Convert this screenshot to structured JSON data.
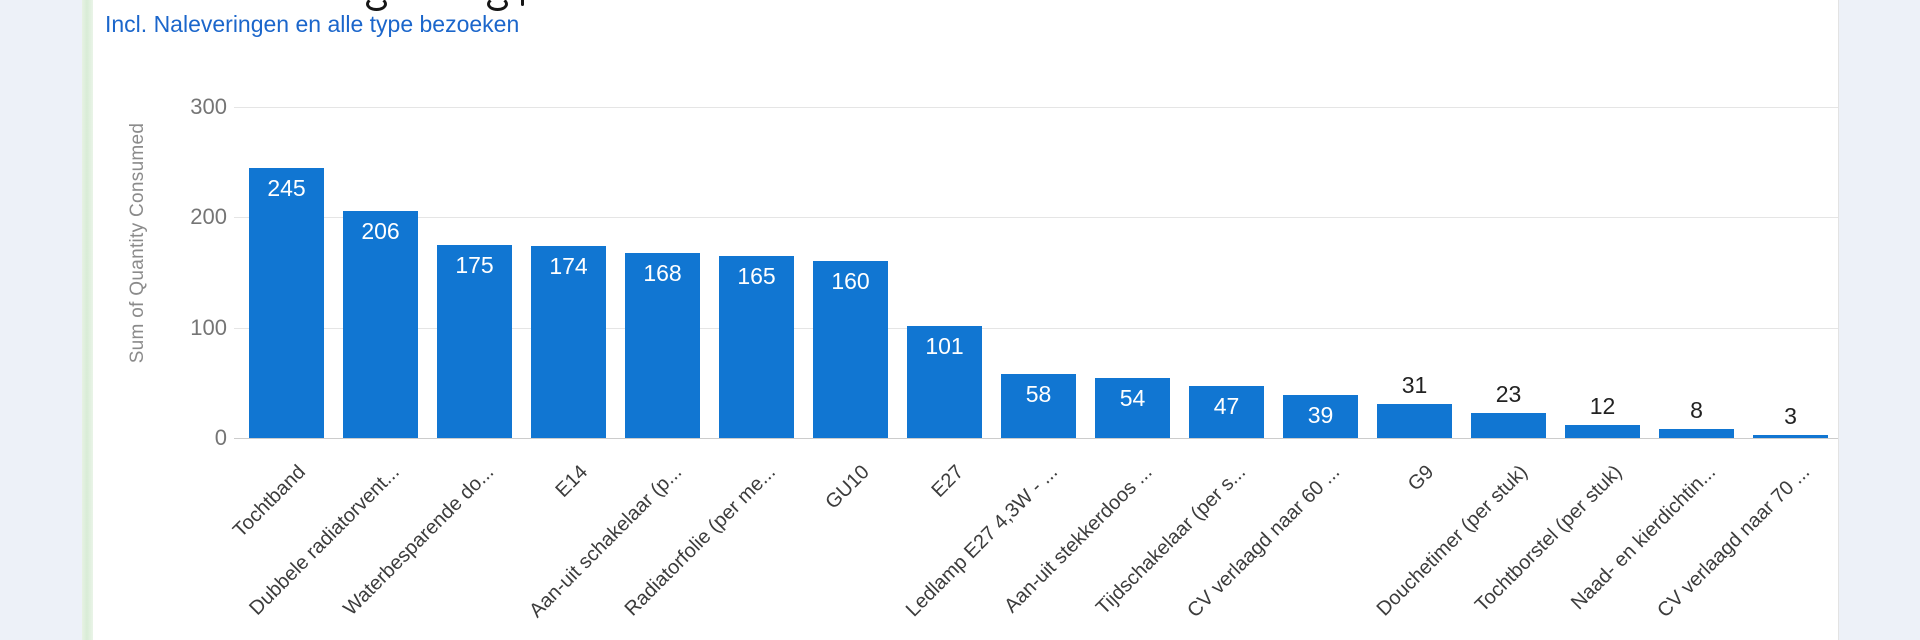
{
  "chart_data": {
    "type": "bar",
    "subtitle": "Incl. Naleveringen en alle type bezoeken",
    "ylabel": "Sum of Quantity Consumed",
    "ylim": [
      0,
      300
    ],
    "yticks": [
      0,
      100,
      200,
      300
    ],
    "grid": true,
    "legend": "none",
    "bar_color": "#1176d2",
    "subtitle_color": "#1b66cb",
    "categories": [
      "Tochtband",
      "Dubbele radiatorvent...",
      "Waterbesparende do...",
      "E14",
      "Aan-uit schakelaar (p...",
      "Radiatorfolie (per me...",
      "GU10",
      "E27",
      "Ledlamp E27 4,3W - ...",
      "Aan-uit stekkerdoos ...",
      "Tijdschakelaar (per s...",
      "CV verlaagd naar 60 ...",
      "G9",
      "Douchetimer (per stuk)",
      "Tochtborstel (per stuk)",
      "Naad- en kierdichtin...",
      "CV verlaagd naar 70 ..."
    ],
    "values": [
      245,
      206,
      175,
      174,
      168,
      165,
      160,
      101,
      58,
      54,
      47,
      39,
      31,
      23,
      12,
      8,
      3
    ]
  }
}
